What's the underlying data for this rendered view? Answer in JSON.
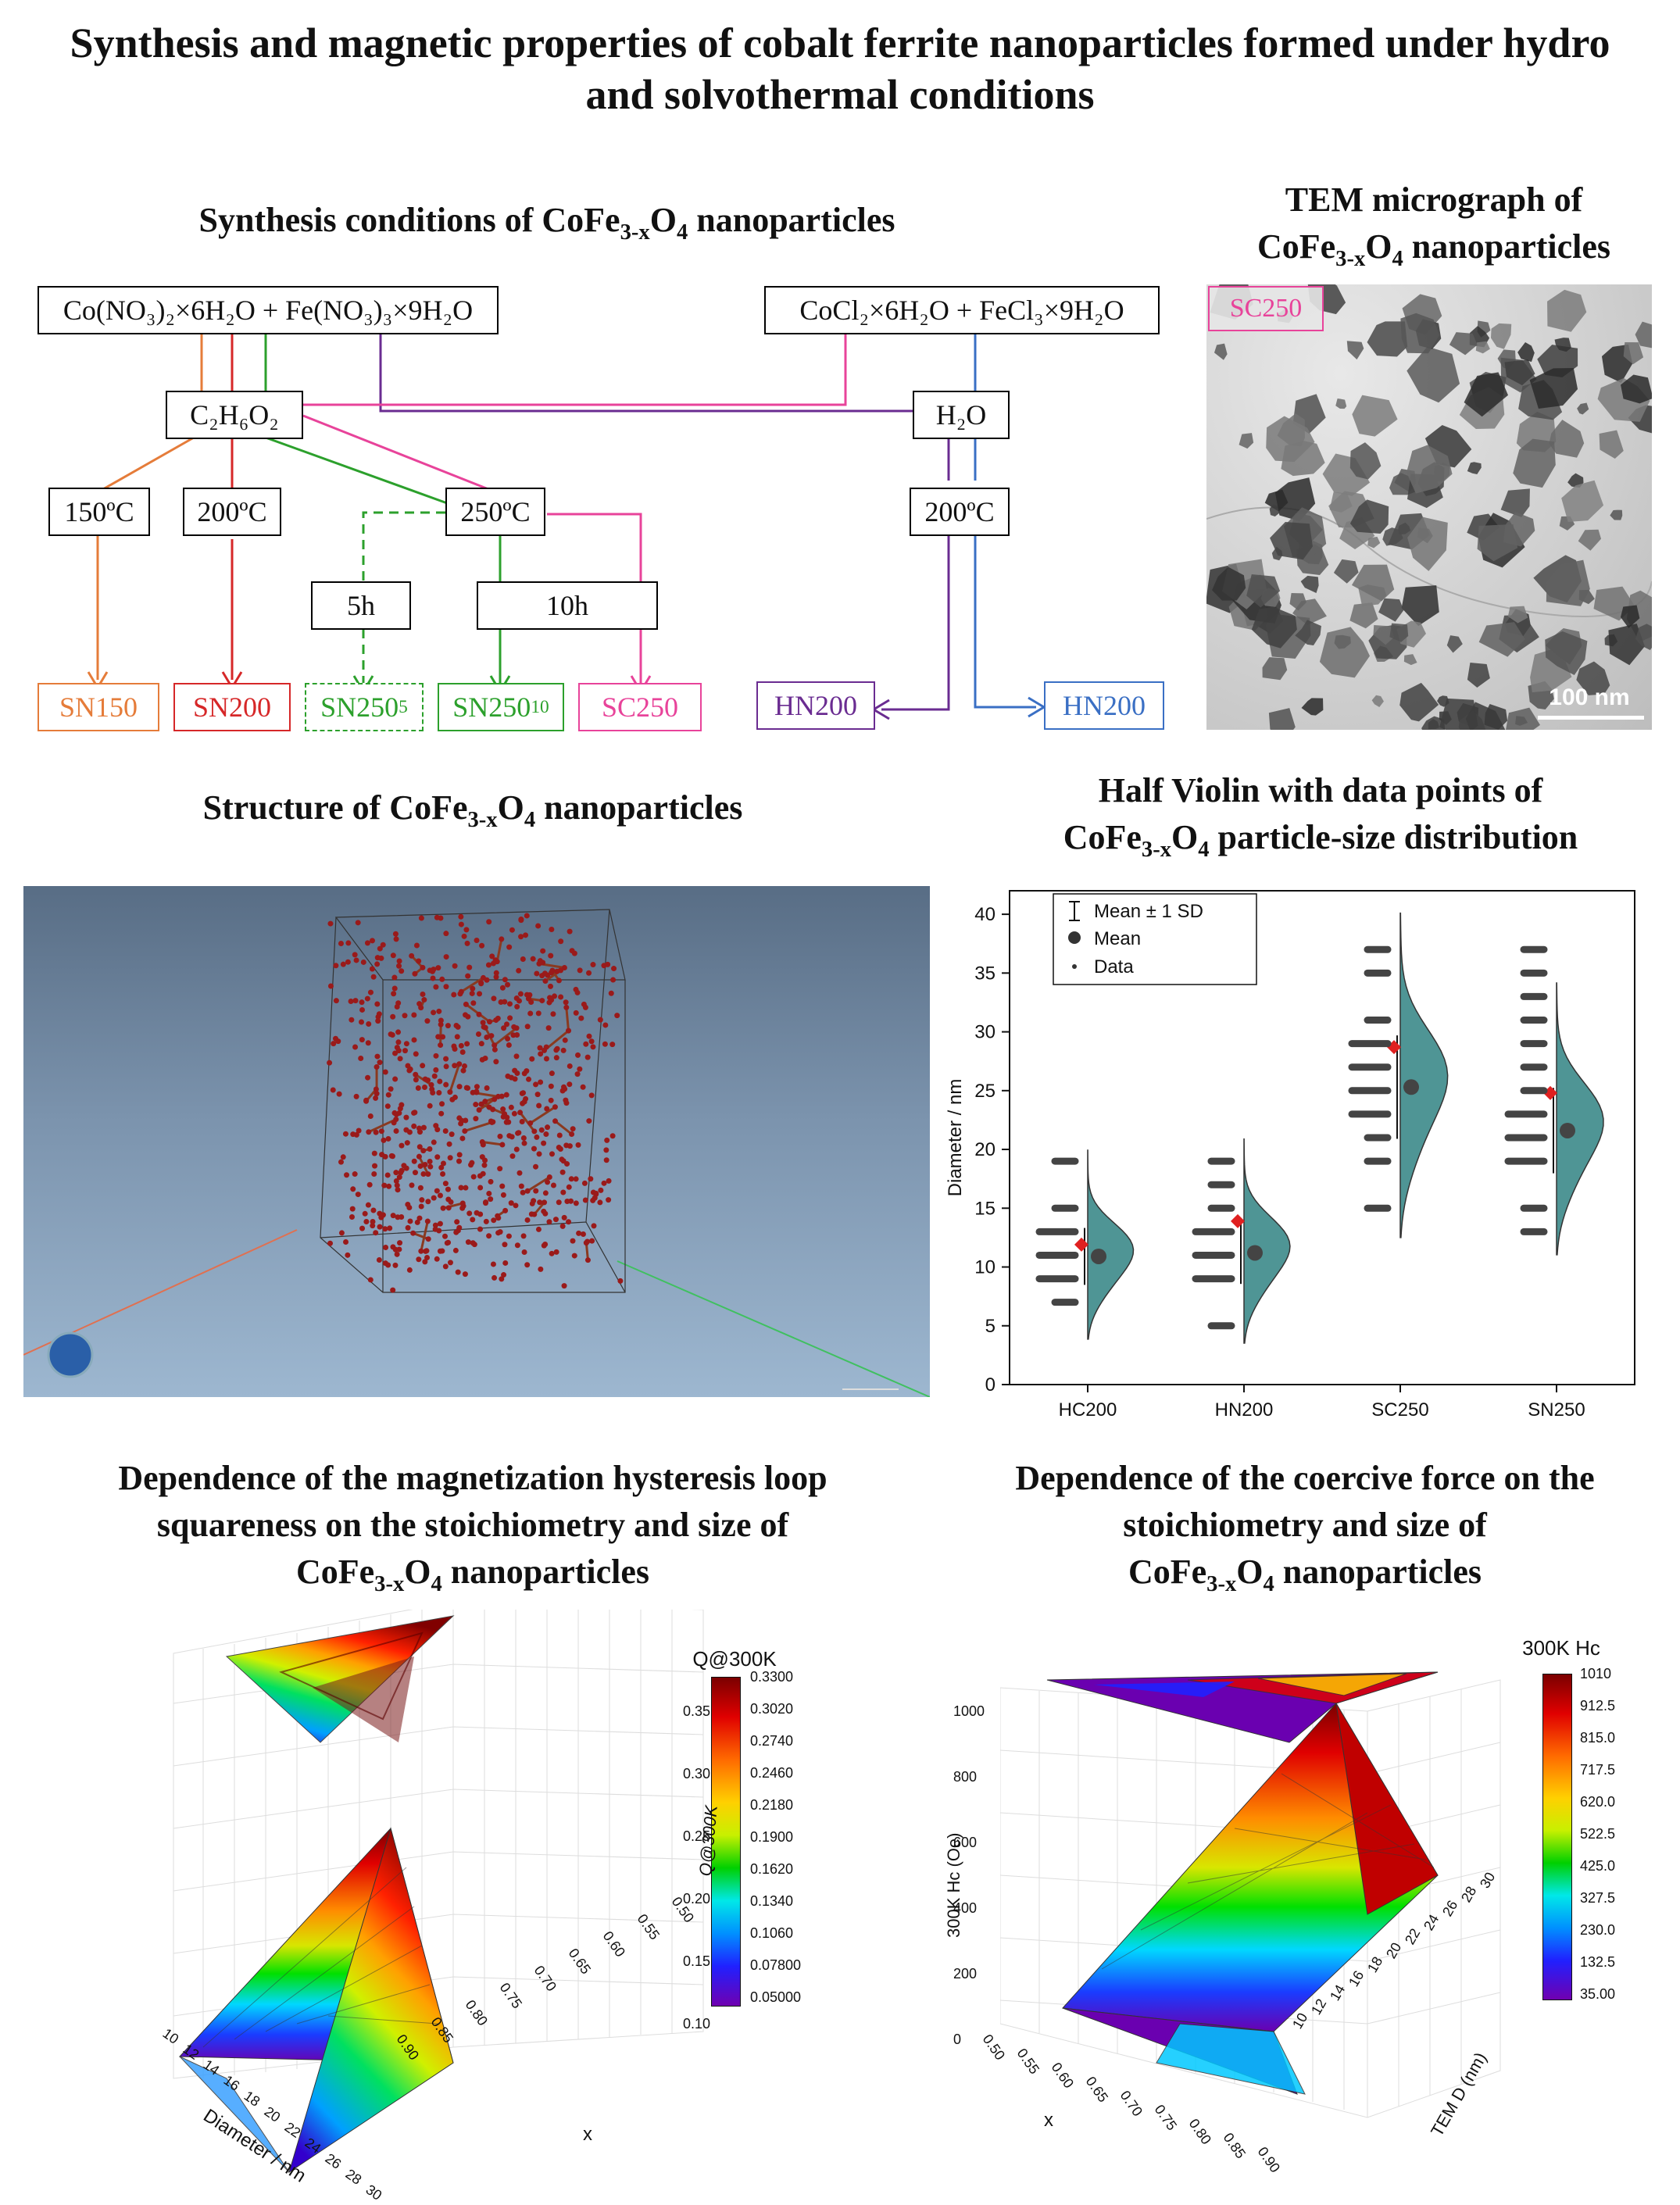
{
  "title": "Synthesis and magnetic properties of cobalt ferrite nanoparticles formed under hydro and solvothermal conditions",
  "synthesis": {
    "title_pre": "Synthesis conditions of CoFe",
    "title_sub": "3-x",
    "title_o": "O",
    "title_o_sub": "4",
    "title_post": " nanoparticles",
    "reagents_left": "Co(NO₃)₂×6H₂O + Fe(NO₃)₃×9H₂O",
    "reagents_right": "CoCl₂×6H₂O + FeCl₃×9H₂O",
    "solvent_left": "C₂H₆O₂",
    "solvent_right": "H₂O",
    "temp_150": "150ºC",
    "temp_200": "200ºC",
    "temp_250": "250ºC",
    "temp_200_right": "200ºC",
    "time_5h": "5h",
    "time_10h": "10h",
    "samples": {
      "sn150": "SN150",
      "sn200": "SN200",
      "sn250_5": "SN250",
      "sn250_5_sup": "5",
      "sn250_10": "SN250",
      "sn250_10_sup": "10",
      "sc250": "SC250",
      "hn200_purple": "HN200",
      "hn200_blue": "HN200"
    },
    "colors": {
      "sn150": "#e57c3a",
      "sn200": "#d62728",
      "sn250": "#2ca02c",
      "sc250": "#e8439a",
      "hn200_purple": "#6a2c91",
      "hn200_blue": "#3a6fc4"
    }
  },
  "tem": {
    "title_line1": "TEM micrograph of",
    "title_line2_pre": "CoFe",
    "title_line2_sub": "3-x",
    "title_line2_o": "O",
    "title_line2_o_sub": "4",
    "title_line2_post": " nanoparticles",
    "sample_label": "SC250",
    "scale_bar": "100 nm"
  },
  "structure": {
    "title_pre": "Structure of CoFe",
    "title_sub": "3-x",
    "title_o": "O",
    "title_o_sub": "4",
    "title_post": " nanoparticles"
  },
  "violin": {
    "title_line1": "Half Violin with data points of",
    "title_line2_pre": "CoFe",
    "title_line2_sub": "3-x",
    "title_line2_o": "O",
    "title_line2_o_sub": "4",
    "title_line2_post": " particle-size distribution"
  },
  "chart_data": [
    {
      "type": "violin",
      "ylabel": "Diameter / nm",
      "ylim": [
        0,
        42
      ],
      "yticks": [
        0,
        5,
        10,
        15,
        20,
        25,
        30,
        35,
        40
      ],
      "categories": [
        "HC200",
        "HN200",
        "SC250",
        "SN250"
      ],
      "means": [
        10.9,
        11.2,
        25.3,
        21.6
      ],
      "sd": [
        2.2,
        2.4,
        4.0,
        3.3
      ],
      "medians_marker": [
        11.9,
        13.9,
        28.7,
        24.8
      ],
      "data_levels": [
        [
          7,
          9,
          11,
          13,
          15,
          19
        ],
        [
          5,
          9,
          11,
          13,
          15,
          17,
          19
        ],
        [
          15,
          19,
          21,
          23,
          25,
          27,
          29,
          31,
          35,
          37
        ],
        [
          13,
          15,
          19,
          21,
          23,
          25,
          27,
          29,
          31,
          33,
          35,
          37
        ]
      ],
      "legend": [
        "Mean ± 1 SD",
        "Mean",
        "Data"
      ],
      "legend_position": "top-left",
      "series_color": "#4f9595"
    },
    {
      "type": "surface3d",
      "title": "Dependence of the magnetization hysteresis loop squareness on the stoichiometry and size of CoFe3-xO4 nanoparticles",
      "zlabel": "Q@300K",
      "xlabel": "Diameter / nm",
      "ylabel": "x",
      "colorbar_title": "Q@300K",
      "colorbar_ticks": [
        "0.3300",
        "0.3020",
        "0.2740",
        "0.2460",
        "0.2180",
        "0.1900",
        "0.1620",
        "0.1340",
        "0.1060",
        "0.07800",
        "0.05000"
      ],
      "zticks": [
        "0.35",
        "0.30",
        "0.25",
        "0.20",
        "0.15",
        "0.10"
      ],
      "xticks": [
        "10",
        "12",
        "14",
        "16",
        "18",
        "20",
        "22",
        "24",
        "26",
        "28",
        "30"
      ],
      "yticks": [
        "0.50",
        "0.55",
        "0.60",
        "0.65",
        "0.70",
        "0.75",
        "0.80",
        "0.85",
        "0.90"
      ]
    },
    {
      "type": "surface3d",
      "title": "Dependence of the coercive force on the stoichiometry and size of CoFe3-xO4 nanoparticles",
      "zlabel": "300K Hc (Oe)",
      "xlabel": "x",
      "ylabel": "TEM D (nm)",
      "colorbar_title": "300K Hc",
      "colorbar_ticks": [
        "1010",
        "912.5",
        "815.0",
        "717.5",
        "620.0",
        "522.5",
        "425.0",
        "327.5",
        "230.0",
        "132.5",
        "35.00"
      ],
      "zticks": [
        "1000",
        "800",
        "600",
        "400",
        "200",
        "0"
      ],
      "xticks": [
        "0.50",
        "0.55",
        "0.60",
        "0.65",
        "0.70",
        "0.75",
        "0.80",
        "0.85",
        "0.90"
      ],
      "yticks": [
        "10",
        "12",
        "14",
        "16",
        "18",
        "20",
        "22",
        "24",
        "26",
        "28",
        "30"
      ]
    }
  ],
  "squareness": {
    "title_line1": "Dependence of the magnetization hysteresis loop",
    "title_line2": "squareness on the stoichiometry and size of",
    "title_line3_pre": "CoFe",
    "title_line3_sub": "3-x",
    "title_line3_o": "O",
    "title_line3_o_sub": "4",
    "title_line3_post": " nanoparticles"
  },
  "coercive": {
    "title_line1": "Dependence of the coercive force on the",
    "title_line2": "stoichiometry and size of",
    "title_line3_pre": "CoFe",
    "title_line3_sub": "3-x",
    "title_line3_o": "O",
    "title_line3_o_sub": "4",
    "title_line3_post": " nanoparticles"
  }
}
